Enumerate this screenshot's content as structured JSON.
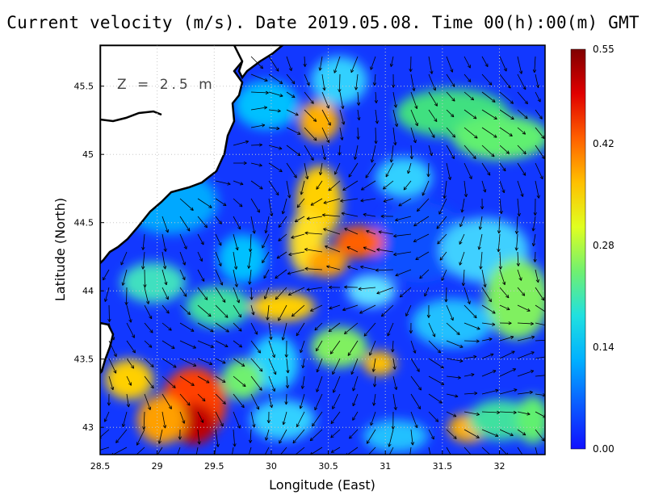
{
  "title": "Current velocity (m/s). Date 2019.05.08. Time 00(h):00(m) GMT",
  "depth_label": "Z = 2.5 m",
  "x_axis": {
    "label": "Longitude (East)",
    "range": [
      28.5,
      32.4
    ],
    "ticks": [
      "28.5",
      "29",
      "29.5",
      "30",
      "30.5",
      "31",
      "31.5",
      "32"
    ]
  },
  "y_axis": {
    "label": "Latitude (North)",
    "range": [
      42.8,
      45.8
    ],
    "ticks": [
      "43",
      "43.5",
      "44",
      "44.5",
      "45",
      "45.5"
    ]
  },
  "colorbar": {
    "range": [
      0.0,
      0.55
    ],
    "ticks": [
      "0.00",
      "0.14",
      "0.28",
      "0.42",
      "0.55"
    ],
    "colors": [
      "#1010ff",
      "#0a5cff",
      "#00b0ff",
      "#20e0e0",
      "#70f070",
      "#e0ff20",
      "#ffc000",
      "#ff6000",
      "#e00000",
      "#800000"
    ]
  },
  "colors": {
    "land": "#ffffff",
    "coast": "#000000",
    "grid": "#c8c8c8"
  }
}
